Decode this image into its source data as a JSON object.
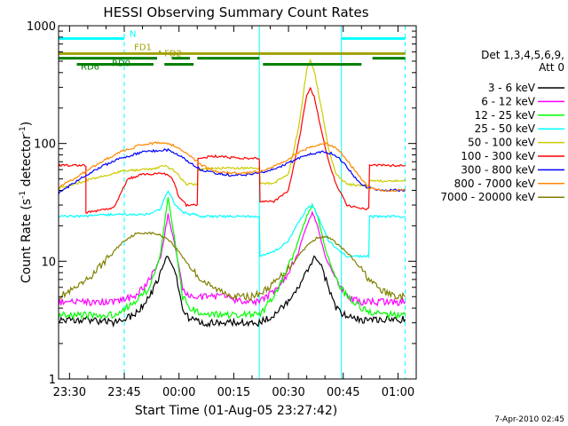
{
  "chart_data": {
    "type": "line",
    "title": "HESSI Observing Summary Count Rates",
    "xlabel": "Start Time (01-Aug-05 23:27:42)",
    "ylabel_prefix": "Count Rate (s",
    "ylabel_mid": " detector",
    "ylabel_suffix": ")",
    "ylabel_sup": "-1",
    "yscale": "log",
    "ylim": [
      1,
      1000
    ],
    "xlim_minutes": [
      -33,
      65
    ],
    "x_ticks": [
      {
        "m": -30,
        "label": "23:30"
      },
      {
        "m": -15,
        "label": "23:45"
      },
      {
        "m": 0,
        "label": "00:00"
      },
      {
        "m": 15,
        "label": "00:15"
      },
      {
        "m": 30,
        "label": "00:30"
      },
      {
        "m": 45,
        "label": "00:45"
      },
      {
        "m": 60,
        "label": "01:00"
      }
    ],
    "y_ticks": [
      {
        "v": 1,
        "label": "1"
      },
      {
        "v": 10,
        "label": "10"
      },
      {
        "v": 100,
        "label": "100"
      },
      {
        "v": 1000,
        "label": "1000"
      }
    ],
    "legend_header": [
      "Det 1,3,4,5,6,9,",
      "Att 0"
    ],
    "legend_placement": "right",
    "footer": "7-Apr-2010 02:45",
    "grid": false,
    "series": [
      {
        "name": "3 - 6 keV",
        "color": "#000000",
        "points": [
          [
            -33,
            3.2
          ],
          [
            -26,
            3.2
          ],
          [
            -18,
            3
          ],
          [
            -12,
            3.5
          ],
          [
            -8,
            5
          ],
          [
            -5,
            8
          ],
          [
            -3,
            11
          ],
          [
            -1,
            8
          ],
          [
            1,
            4
          ],
          [
            3,
            3.2
          ],
          [
            7,
            3
          ],
          [
            12,
            3
          ],
          [
            18,
            3
          ],
          [
            22,
            3
          ],
          [
            26,
            3.5
          ],
          [
            30,
            4.5
          ],
          [
            33,
            6
          ],
          [
            35,
            8
          ],
          [
            37,
            11
          ],
          [
            39,
            9
          ],
          [
            41,
            6
          ],
          [
            43,
            4
          ],
          [
            45,
            3.5
          ],
          [
            49,
            3.2
          ],
          [
            55,
            3.2
          ],
          [
            62,
            3.2
          ]
        ]
      },
      {
        "name": "6 - 12 keV",
        "color": "#ff00ff",
        "points": [
          [
            -33,
            4.5
          ],
          [
            -26,
            4.5
          ],
          [
            -18,
            4.5
          ],
          [
            -12,
            5
          ],
          [
            -8,
            7
          ],
          [
            -5,
            11
          ],
          [
            -3,
            25
          ],
          [
            -1,
            13
          ],
          [
            1,
            6
          ],
          [
            3,
            5
          ],
          [
            7,
            5
          ],
          [
            12,
            5
          ],
          [
            18,
            4.5
          ],
          [
            22,
            4.5
          ],
          [
            26,
            5.5
          ],
          [
            30,
            8
          ],
          [
            33,
            13
          ],
          [
            35,
            20
          ],
          [
            36.5,
            26
          ],
          [
            38,
            20
          ],
          [
            40,
            11
          ],
          [
            43,
            7
          ],
          [
            46,
            5
          ],
          [
            50,
            4.5
          ],
          [
            55,
            4.5
          ],
          [
            62,
            4.5
          ]
        ]
      },
      {
        "name": "12 - 25 keV",
        "color": "#00ff00",
        "points": [
          [
            -33,
            3.5
          ],
          [
            -26,
            3.5
          ],
          [
            -18,
            3.5
          ],
          [
            -12,
            4.5
          ],
          [
            -8,
            6
          ],
          [
            -5,
            12
          ],
          [
            -3,
            35
          ],
          [
            -1,
            14
          ],
          [
            1,
            5
          ],
          [
            3,
            4
          ],
          [
            7,
            3.5
          ],
          [
            12,
            3.5
          ],
          [
            18,
            3.5
          ],
          [
            22,
            3.5
          ],
          [
            26,
            5
          ],
          [
            30,
            9
          ],
          [
            33,
            16
          ],
          [
            35,
            24
          ],
          [
            36.5,
            30
          ],
          [
            38,
            24
          ],
          [
            40,
            13
          ],
          [
            43,
            7
          ],
          [
            46,
            5
          ],
          [
            50,
            4
          ],
          [
            55,
            3.5
          ],
          [
            62,
            3.5
          ]
        ]
      },
      {
        "name": "25 - 50 keV",
        "color": "#00ffff",
        "points": [
          [
            -33,
            24
          ],
          [
            -26,
            24
          ],
          [
            -18,
            25
          ],
          [
            -12,
            25
          ],
          [
            -8,
            25
          ],
          [
            -5,
            28
          ],
          [
            -3,
            40
          ],
          [
            -1,
            30
          ],
          [
            1,
            26
          ],
          [
            3,
            25
          ],
          [
            5,
            25
          ],
          [
            5.2,
            24
          ],
          [
            9,
            24
          ],
          [
            14,
            24
          ],
          [
            18,
            24
          ],
          [
            22,
            24
          ],
          [
            22.2,
            11
          ],
          [
            26,
            12
          ],
          [
            30,
            15
          ],
          [
            33,
            22
          ],
          [
            35,
            28
          ],
          [
            36.5,
            30
          ],
          [
            38,
            24
          ],
          [
            41,
            15
          ],
          [
            44,
            12
          ],
          [
            46,
            11
          ],
          [
            50,
            11
          ],
          [
            52,
            11
          ],
          [
            52.2,
            24
          ],
          [
            58,
            24
          ],
          [
            62,
            24
          ]
        ]
      },
      {
        "name": "50 - 100 keV",
        "color": "#cccc00",
        "points": [
          [
            -33,
            42
          ],
          [
            -28,
            46
          ],
          [
            -22,
            52
          ],
          [
            -16,
            58
          ],
          [
            -10,
            60
          ],
          [
            -6,
            62
          ],
          [
            -4,
            65
          ],
          [
            -1,
            58
          ],
          [
            2,
            45
          ],
          [
            4,
            45
          ],
          [
            5,
            45
          ],
          [
            5.2,
            60
          ],
          [
            10,
            62
          ],
          [
            14,
            62
          ],
          [
            18,
            62
          ],
          [
            22,
            62
          ],
          [
            22.2,
            46
          ],
          [
            26,
            46
          ],
          [
            30,
            55
          ],
          [
            33,
            150
          ],
          [
            35,
            430
          ],
          [
            36,
            520
          ],
          [
            37,
            420
          ],
          [
            39,
            200
          ],
          [
            41,
            90
          ],
          [
            43,
            55
          ],
          [
            46,
            45
          ],
          [
            50,
            44
          ],
          [
            52,
            44
          ],
          [
            52.2,
            48
          ],
          [
            58,
            48
          ],
          [
            62,
            48
          ]
        ]
      },
      {
        "name": "100 - 300 keV",
        "color": "#ff0000",
        "points": [
          [
            -33,
            65
          ],
          [
            -26,
            65
          ],
          [
            -25.5,
            65
          ],
          [
            -25.5,
            26
          ],
          [
            -22,
            27
          ],
          [
            -20,
            28
          ],
          [
            -18,
            28
          ],
          [
            -14,
            50
          ],
          [
            -10,
            55
          ],
          [
            -6,
            55
          ],
          [
            -4,
            55
          ],
          [
            -2,
            52
          ],
          [
            0,
            35
          ],
          [
            2,
            30
          ],
          [
            5,
            30
          ],
          [
            5.2,
            75
          ],
          [
            10,
            78
          ],
          [
            14,
            76
          ],
          [
            18,
            75
          ],
          [
            22,
            75
          ],
          [
            22.2,
            32
          ],
          [
            26,
            32
          ],
          [
            30,
            40
          ],
          [
            33,
            110
          ],
          [
            35,
            260
          ],
          [
            36,
            300
          ],
          [
            37,
            250
          ],
          [
            39,
            130
          ],
          [
            41,
            70
          ],
          [
            43,
            45
          ],
          [
            46,
            30
          ],
          [
            50,
            28
          ],
          [
            52,
            28
          ],
          [
            52.2,
            65
          ],
          [
            58,
            65
          ],
          [
            62,
            65
          ]
        ]
      },
      {
        "name": "300 - 800 keV",
        "color": "#0000ff",
        "points": [
          [
            -33,
            38
          ],
          [
            -28,
            48
          ],
          [
            -22,
            62
          ],
          [
            -16,
            75
          ],
          [
            -10,
            84
          ],
          [
            -5,
            88
          ],
          [
            -3,
            88
          ],
          [
            0,
            80
          ],
          [
            3,
            68
          ],
          [
            6,
            60
          ],
          [
            10,
            56
          ],
          [
            14,
            54
          ],
          [
            18,
            54
          ],
          [
            22,
            56
          ],
          [
            26,
            60
          ],
          [
            30,
            68
          ],
          [
            34,
            78
          ],
          [
            38,
            84
          ],
          [
            40,
            85
          ],
          [
            42,
            82
          ],
          [
            44,
            74
          ],
          [
            46,
            64
          ],
          [
            48,
            52
          ],
          [
            50,
            45
          ],
          [
            52,
            42
          ],
          [
            56,
            40
          ],
          [
            62,
            40
          ]
        ]
      },
      {
        "name": "800 - 7000 keV",
        "color": "#ff8800",
        "points": [
          [
            -33,
            42
          ],
          [
            -28,
            52
          ],
          [
            -22,
            68
          ],
          [
            -16,
            85
          ],
          [
            -10,
            98
          ],
          [
            -5,
            102
          ],
          [
            -3,
            100
          ],
          [
            0,
            92
          ],
          [
            3,
            78
          ],
          [
            6,
            66
          ],
          [
            10,
            58
          ],
          [
            14,
            56
          ],
          [
            18,
            56
          ],
          [
            22,
            58
          ],
          [
            26,
            64
          ],
          [
            30,
            74
          ],
          [
            34,
            88
          ],
          [
            38,
            98
          ],
          [
            40,
            100
          ],
          [
            42,
            96
          ],
          [
            44,
            86
          ],
          [
            46,
            72
          ],
          [
            48,
            60
          ],
          [
            50,
            50
          ],
          [
            52,
            42
          ],
          [
            56,
            40
          ],
          [
            62,
            40
          ]
        ]
      },
      {
        "name": "7000 - 20000 keV",
        "color": "#808000",
        "points": [
          [
            -33,
            5
          ],
          [
            -30,
            5.5
          ],
          [
            -27,
            6.2
          ],
          [
            -24,
            7.5
          ],
          [
            -21,
            9.5
          ],
          [
            -18,
            12
          ],
          [
            -15,
            15
          ],
          [
            -12,
            17
          ],
          [
            -9,
            17.5
          ],
          [
            -6,
            17
          ],
          [
            -3,
            15.5
          ],
          [
            0,
            12
          ],
          [
            3,
            9
          ],
          [
            6,
            7
          ],
          [
            9,
            6
          ],
          [
            12,
            5.5
          ],
          [
            16,
            5
          ],
          [
            20,
            5
          ],
          [
            23,
            5.5
          ],
          [
            26,
            6.5
          ],
          [
            29,
            8
          ],
          [
            32,
            10.5
          ],
          [
            35,
            13.5
          ],
          [
            38,
            16
          ],
          [
            41,
            16
          ],
          [
            44,
            13.5
          ],
          [
            47,
            11
          ],
          [
            50,
            8.5
          ],
          [
            53,
            6.5
          ],
          [
            56,
            5.5
          ],
          [
            60,
            5
          ],
          [
            62,
            5
          ]
        ]
      }
    ],
    "state_bars": [
      {
        "label": "N",
        "color": "#00ffff",
        "value": 780,
        "segments": [
          [
            -33,
            -15
          ],
          [
            44.5,
            62
          ]
        ]
      },
      {
        "label": "FD1",
        "color": "#a0a000",
        "value": 600,
        "segments": [
          [
            -5.5,
            -5.3
          ]
        ]
      },
      {
        "label": "FD2",
        "color": "#a0a000",
        "value": 580,
        "segments": [
          [
            -33,
            62
          ]
        ]
      },
      {
        "label": "RD0",
        "color": "#008000",
        "value": 530,
        "segments": [
          [
            -33,
            -6
          ],
          [
            -2,
            3
          ],
          [
            5,
            22
          ],
          [
            53,
            62
          ]
        ]
      },
      {
        "label": "RD6",
        "color": "#008000",
        "value": 470,
        "segments": [
          [
            -28,
            -7
          ],
          [
            -4,
            4
          ],
          [
            23,
            50
          ]
        ]
      }
    ],
    "vertical_markers": [
      {
        "m": -15,
        "style": "dashed",
        "color": "#00ffff"
      },
      {
        "m": 22,
        "style": "solid",
        "color": "#00ffff"
      },
      {
        "m": 44.5,
        "style": "solid",
        "color": "#00ffff"
      },
      {
        "m": 62,
        "style": "dashed",
        "color": "#00ffff"
      }
    ]
  }
}
